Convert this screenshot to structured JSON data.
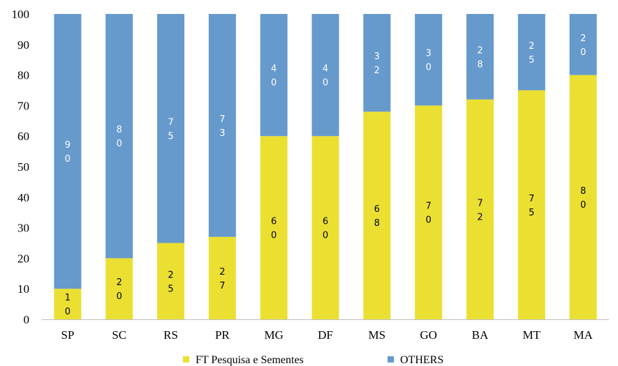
{
  "chart_data": {
    "type": "bar",
    "stacked": true,
    "categories": [
      "SP",
      "SC",
      "RS",
      "PR",
      "MG",
      "DF",
      "MS",
      "GO",
      "BA",
      "MT",
      "MA"
    ],
    "series": [
      {
        "name": "FT Pesquisa e Sementes",
        "values": [
          10,
          20,
          25,
          27,
          60,
          60,
          68,
          70,
          72,
          75,
          80
        ],
        "color": "#ebe032",
        "label_color": "#000000"
      },
      {
        "name": "OTHERS",
        "values": [
          90,
          80,
          75,
          73,
          40,
          40,
          32,
          30,
          28,
          25,
          20
        ],
        "color": "#6699cc",
        "label_color": "#ffffff"
      }
    ],
    "y_ticks": [
      "0",
      "10",
      "20",
      "30",
      "40",
      "50",
      "60",
      "70",
      "80",
      "90",
      "100"
    ],
    "ylim": [
      0,
      100
    ],
    "grid": false,
    "legend_position": "bottom"
  }
}
